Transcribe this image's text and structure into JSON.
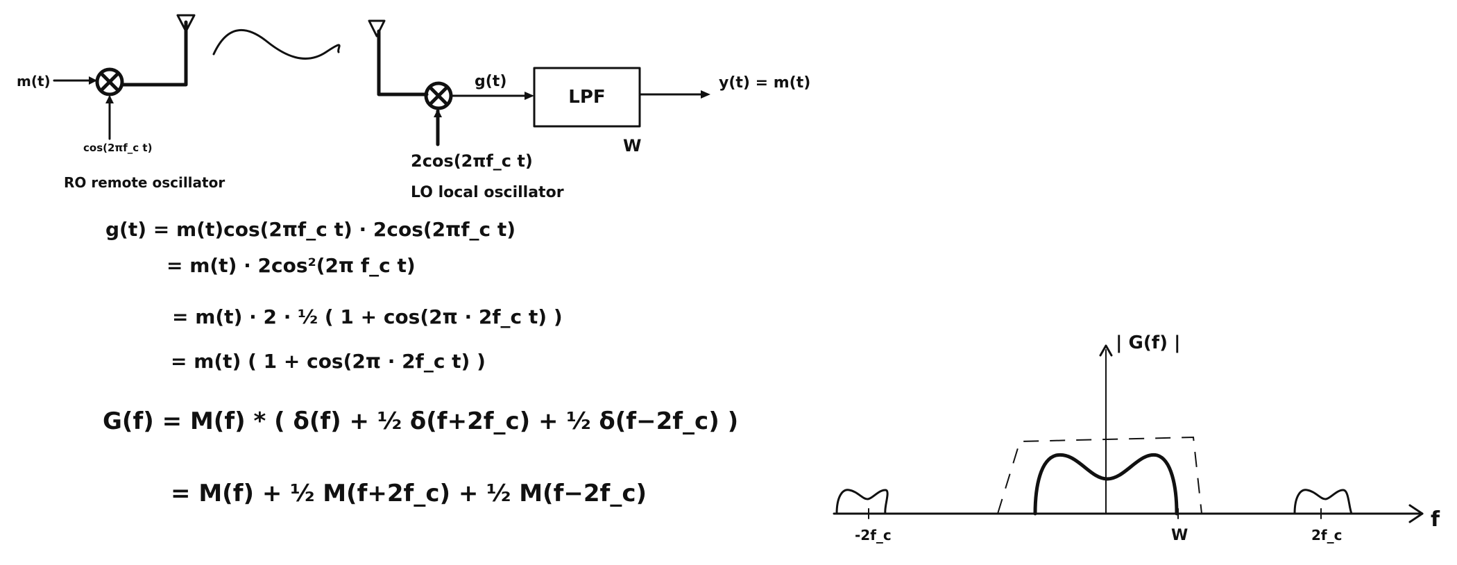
{
  "transmitter": {
    "input_label": "m(t)",
    "carrier_label": "cos(2πf_c t)",
    "oscillator_label": "RO remote oscillator"
  },
  "receiver": {
    "mixer_output_label": "g(t)",
    "lpf_label": "LPF",
    "lpf_bandwidth_label": "W",
    "output_label": "y(t) = m(t)",
    "carrier_label": "2cos(2πf_c t)",
    "oscillator_label": "LO  local oscillator"
  },
  "derivation": {
    "lines": [
      "g(t) = m(t)cos(2πf_c t) · 2cos(2πf_c t)",
      "= m(t) · 2cos²(2π f_c t)",
      "= m(t) · 2 · ½ ( 1 + cos(2π · 2f_c t) )",
      "= m(t) ( 1 + cos(2π · 2f_c t) )",
      "G(f) = M(f) * ( δ(f) + ½ δ(f+2f_c) + ½ δ(f−2f_c) )",
      "= M(f) + ½ M(f+2f_c) + ½ M(f−2f_c)"
    ]
  },
  "spectrum": {
    "y_axis_label": "| G(f) |",
    "x_axis_label": "f",
    "tick_neg": "-2f_c",
    "tick_W": "W",
    "tick_pos": "2f_c"
  }
}
